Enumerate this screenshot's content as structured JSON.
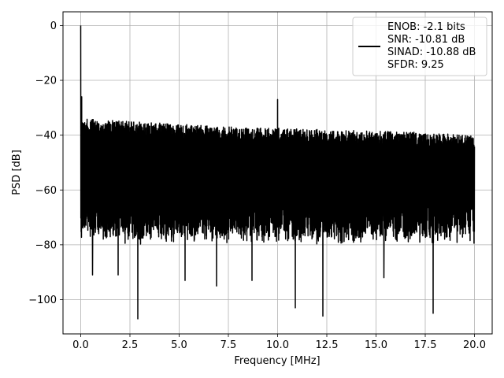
{
  "chart_data": {
    "type": "line",
    "xlabel": "Frequency [MHz]",
    "ylabel": "PSD [dB]",
    "xlim": [
      -0.9,
      20.9
    ],
    "ylim": [
      -112.5,
      5.0
    ],
    "x_ticks": [
      0.0,
      2.5,
      5.0,
      7.5,
      10.0,
      12.5,
      15.0,
      17.5,
      20.0
    ],
    "x_tick_labels": [
      "0.0",
      "2.5",
      "5.0",
      "7.5",
      "10.0",
      "12.5",
      "15.0",
      "17.5",
      "20.0"
    ],
    "y_ticks": [
      0,
      -20,
      -40,
      -60,
      -80,
      -100
    ],
    "y_tick_labels": [
      "0",
      "−20",
      "−40",
      "−60",
      "−80",
      "−100"
    ],
    "grid": true,
    "legend_position": "upper right",
    "line_color": "#000000",
    "series": [
      {
        "name": "ENOB: -2.1 bits\nSNR: -10.81 dB\nSINAD: -10.88 dB\nSFDR: 9.25",
        "x_range": [
          0.0,
          20.0
        ],
        "noise_floor_top_db": [
          [
            0.0,
            -34
          ],
          [
            2.5,
            -35
          ],
          [
            5.0,
            -36
          ],
          [
            7.5,
            -37
          ],
          [
            10.0,
            -37.5
          ],
          [
            12.5,
            -38
          ],
          [
            15.0,
            -38.5
          ],
          [
            17.5,
            -39
          ],
          [
            20.0,
            -40
          ]
        ],
        "noise_floor_typical_min_db": -82,
        "peaks": [
          {
            "x": 0.0,
            "y": 0
          },
          {
            "x": 0.05,
            "y": -26
          },
          {
            "x": 10.0,
            "y": -27
          }
        ],
        "deep_nulls": [
          {
            "x": 2.9,
            "y": -107
          },
          {
            "x": 10.9,
            "y": -103
          },
          {
            "x": 12.3,
            "y": -106
          },
          {
            "x": 17.9,
            "y": -105
          },
          {
            "x": 6.9,
            "y": -95
          },
          {
            "x": 0.6,
            "y": -91
          },
          {
            "x": 1.9,
            "y": -91
          },
          {
            "x": 5.3,
            "y": -93
          },
          {
            "x": 8.7,
            "y": -93
          },
          {
            "x": 15.4,
            "y": -92
          }
        ]
      }
    ]
  }
}
